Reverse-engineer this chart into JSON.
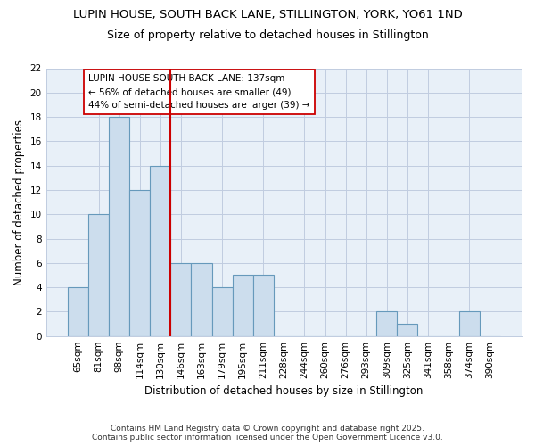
{
  "title": "LUPIN HOUSE, SOUTH BACK LANE, STILLINGTON, YORK, YO61 1ND",
  "subtitle": "Size of property relative to detached houses in Stillington",
  "xlabel": "Distribution of detached houses by size in Stillington",
  "ylabel": "Number of detached properties",
  "bar_labels": [
    "65sqm",
    "81sqm",
    "98sqm",
    "114sqm",
    "130sqm",
    "146sqm",
    "163sqm",
    "179sqm",
    "195sqm",
    "211sqm",
    "228sqm",
    "244sqm",
    "260sqm",
    "276sqm",
    "293sqm",
    "309sqm",
    "325sqm",
    "341sqm",
    "358sqm",
    "374sqm",
    "390sqm"
  ],
  "bar_values": [
    4,
    10,
    18,
    12,
    14,
    6,
    6,
    4,
    5,
    5,
    0,
    0,
    0,
    0,
    0,
    2,
    1,
    0,
    0,
    2,
    0
  ],
  "bar_color": "#ccdded",
  "bar_edgecolor": "#6699bb",
  "vline_color": "#cc0000",
  "ylim": [
    0,
    22
  ],
  "yticks": [
    0,
    2,
    4,
    6,
    8,
    10,
    12,
    14,
    16,
    18,
    20,
    22
  ],
  "annotation_text": "LUPIN HOUSE SOUTH BACK LANE: 137sqm\n← 56% of detached houses are smaller (49)\n44% of semi-detached houses are larger (39) →",
  "annotation_box_facecolor": "#ffffff",
  "annotation_box_edgecolor": "#cc0000",
  "footer_text": "Contains HM Land Registry data © Crown copyright and database right 2025.\nContains public sector information licensed under the Open Government Licence v3.0.",
  "bg_color": "#ffffff",
  "plot_bg_color": "#e8f0f8",
  "grid_color": "#c0cce0",
  "title_fontsize": 9.5,
  "subtitle_fontsize": 9,
  "ylabel_fontsize": 8.5,
  "xlabel_fontsize": 8.5,
  "tick_fontsize": 7.5,
  "annotation_fontsize": 7.5,
  "footer_fontsize": 6.5
}
